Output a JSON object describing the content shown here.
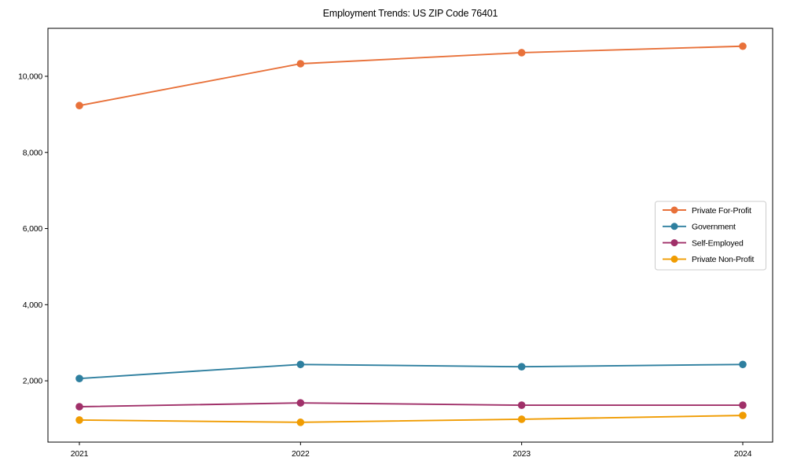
{
  "chart_data": {
    "type": "line",
    "title": "Employment Trends: US ZIP Code 76401",
    "xlabel": "",
    "ylabel": "",
    "x": [
      2021,
      2022,
      2023,
      2024
    ],
    "xtick_labels": [
      "2021",
      "2022",
      "2023",
      "2024"
    ],
    "yticks": [
      2000,
      4000,
      6000,
      8000,
      10000
    ],
    "ytick_labels": [
      "2,000",
      "4,000",
      "6,000",
      "8,000",
      "10,000"
    ],
    "ylim": [
      390,
      11260
    ],
    "grid": false,
    "legend_position": "right",
    "background_color": "#ffffff",
    "axis_color": "#000000",
    "legend_border_color": "#cccccc",
    "series": [
      {
        "name": "Private For-Profit",
        "color": "#E8713A",
        "values": [
          9230,
          10330,
          10620,
          10790
        ]
      },
      {
        "name": "Government",
        "color": "#2E7F9F",
        "values": [
          2060,
          2430,
          2370,
          2430
        ]
      },
      {
        "name": "Self-Employed",
        "color": "#A03069",
        "values": [
          1320,
          1420,
          1360,
          1360
        ]
      },
      {
        "name": "Private Non-Profit",
        "color": "#F09C02",
        "values": [
          970,
          910,
          990,
          1090
        ]
      }
    ]
  }
}
